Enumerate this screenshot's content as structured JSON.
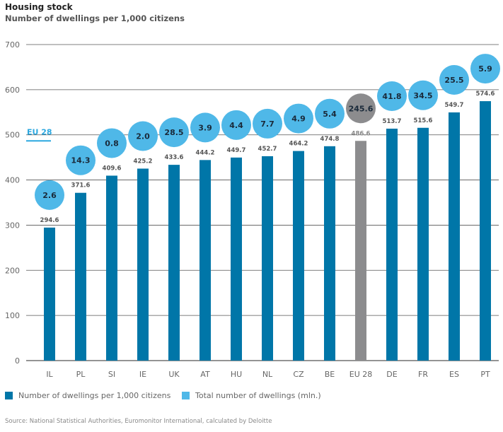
{
  "title": "Housing stock",
  "subtitle": "Number of dwellings per 1,000 citizens",
  "source": "Source: National Statistical Authorities, Euromonitor International, calculated by Deloitte",
  "colors": {
    "bar": "#0076a8",
    "bubble": "#4fb8e8",
    "eu_bar": "#8c8c8e",
    "eu_bubble": "#8c8c8e",
    "eu_line": "#2ca8e0",
    "grid": "#555555"
  },
  "chart_data": {
    "type": "bar",
    "title": "Housing stock",
    "subtitle": "Number of dwellings per 1,000 citizens",
    "categories": [
      "IL",
      "PL",
      "SI",
      "IE",
      "UK",
      "AT",
      "HU",
      "NL",
      "CZ",
      "BE",
      "EU 28",
      "DE",
      "FR",
      "ES",
      "PT"
    ],
    "series": [
      {
        "name": "Number of dwellings per 1,000 citizens",
        "values": [
          294.6,
          371.6,
          409.6,
          425.2,
          433.6,
          444.2,
          449.7,
          452.7,
          464.2,
          474.8,
          486.6,
          513.7,
          515.6,
          549.7,
          574.6
        ]
      },
      {
        "name": "Total number of dwellings (mln.)",
        "values": [
          2.6,
          14.3,
          0.8,
          2.0,
          28.5,
          3.9,
          4.4,
          7.7,
          4.9,
          5.4,
          245.6,
          41.8,
          34.5,
          25.5,
          5.9
        ]
      }
    ],
    "value_labels": [
      "294.6",
      "371.6",
      "409.6",
      "425.2",
      "433.6",
      "444.2",
      "449.7",
      "452.7",
      "464.2",
      "474.8",
      "486.6",
      "513.7",
      "515.6",
      "549.7",
      "574.6"
    ],
    "bubble_labels": [
      "2.6",
      "14.3",
      "0.8",
      "2.0",
      "28.5",
      "3.9",
      "4.4",
      "7.7",
      "4.9",
      "5.4",
      "245.6",
      "41.8",
      "34.5",
      "25.5",
      "5.9"
    ],
    "ylim": [
      0,
      700
    ],
    "yticks": [
      "0",
      "100",
      "200",
      "300",
      "400",
      "500",
      "600",
      "700"
    ],
    "grid": true,
    "reference_line": {
      "label": "EU 28",
      "value": 486.6
    },
    "highlight_category": "EU 28",
    "legend_placement": "bottom-left"
  }
}
